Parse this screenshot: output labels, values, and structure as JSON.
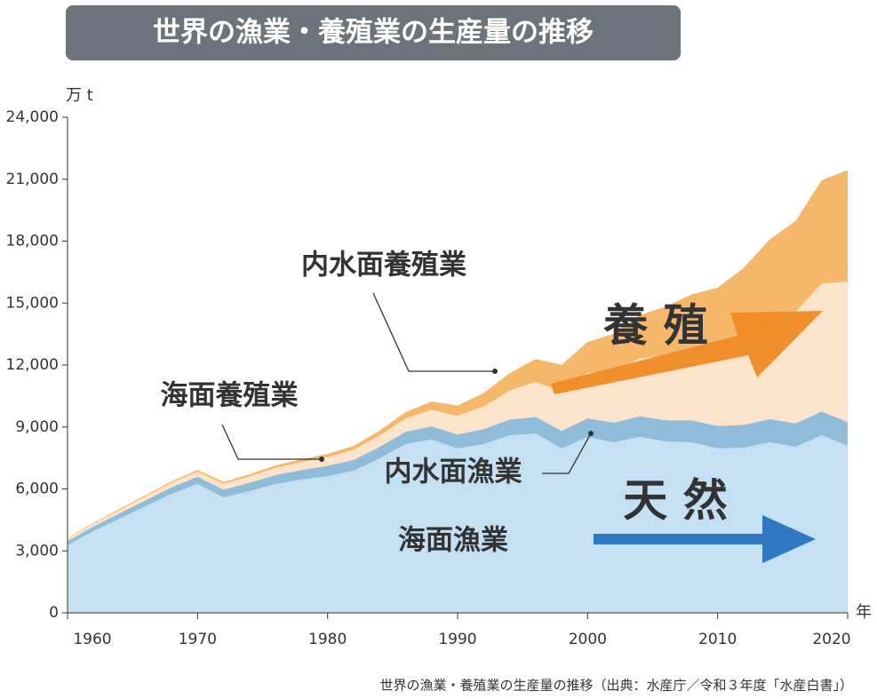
{
  "chart_data": {
    "type": "stacked-area",
    "title": "世界の漁業・養殖業の生産量の推移",
    "y_unit": "万 t",
    "x_unit": "年",
    "source": "世界の漁業・養殖業の生産量の推移（出典：水産庁／令和３年度「水産白書」）",
    "annotations": [
      "養 殖",
      "天 然"
    ],
    "x": [
      1960,
      1962,
      1964,
      1966,
      1968,
      1970,
      1972,
      1974,
      1976,
      1978,
      1980,
      1982,
      1984,
      1986,
      1988,
      1990,
      1992,
      1994,
      1996,
      1998,
      2000,
      2002,
      2004,
      2006,
      2008,
      2010,
      2012,
      2014,
      2016,
      2018,
      2020
    ],
    "series": [
      {
        "name": "海面漁業",
        "color": "#c5e0f2",
        "values": [
          3270,
          3960,
          4560,
          5160,
          5760,
          6240,
          5590,
          5890,
          6240,
          6450,
          6620,
          6880,
          7480,
          8170,
          8390,
          7960,
          8170,
          8600,
          8690,
          7960,
          8520,
          8260,
          8520,
          8300,
          8260,
          7960,
          8000,
          8260,
          8040,
          8600,
          8090
        ]
      },
      {
        "name": "内水面漁業",
        "color": "#8fbcd9",
        "values": [
          200,
          230,
          260,
          290,
          320,
          350,
          380,
          410,
          440,
          470,
          500,
          530,
          560,
          600,
          640,
          680,
          720,
          760,
          800,
          850,
          900,
          950,
          1000,
          1030,
          1060,
          1090,
          1100,
          1120,
          1140,
          1150,
          1150
        ]
      },
      {
        "name": "海面養殖業",
        "color": "#fce4cc",
        "values": [
          100,
          130,
          160,
          190,
          220,
          250,
          280,
          310,
          340,
          380,
          420,
          480,
          550,
          650,
          800,
          900,
          1100,
          1400,
          1700,
          1900,
          2200,
          2500,
          2800,
          3100,
          3400,
          3700,
          4200,
          4800,
          5400,
          6200,
          6800
        ]
      },
      {
        "name": "内水面養殖業",
        "color": "#f5b86b",
        "values": [
          30,
          40,
          50,
          60,
          70,
          80,
          90,
          100,
          120,
          140,
          160,
          190,
          230,
          300,
          400,
          500,
          650,
          850,
          1100,
          1300,
          1500,
          1800,
          2100,
          2400,
          2700,
          3000,
          3400,
          3900,
          4400,
          5000,
          5400
        ]
      }
    ],
    "xlim": [
      1960,
      2020
    ],
    "xticks": [
      1960,
      1970,
      1980,
      1990,
      2000,
      2010,
      2020
    ],
    "ylim": [
      0,
      24000
    ],
    "yticks": [
      0,
      {
        "value": 3000,
        "label": "3,000"
      },
      {
        "value": 6000,
        "label": "6,000"
      },
      {
        "value": 9000,
        "label": "9,000"
      },
      {
        "value": 12000,
        "label": "12,000"
      },
      {
        "value": 15000,
        "label": "15,000"
      },
      {
        "value": 18000,
        "label": "18,000"
      },
      {
        "value": 21000,
        "label": "21,000"
      },
      {
        "value": 24000,
        "label": "24,000"
      }
    ]
  }
}
